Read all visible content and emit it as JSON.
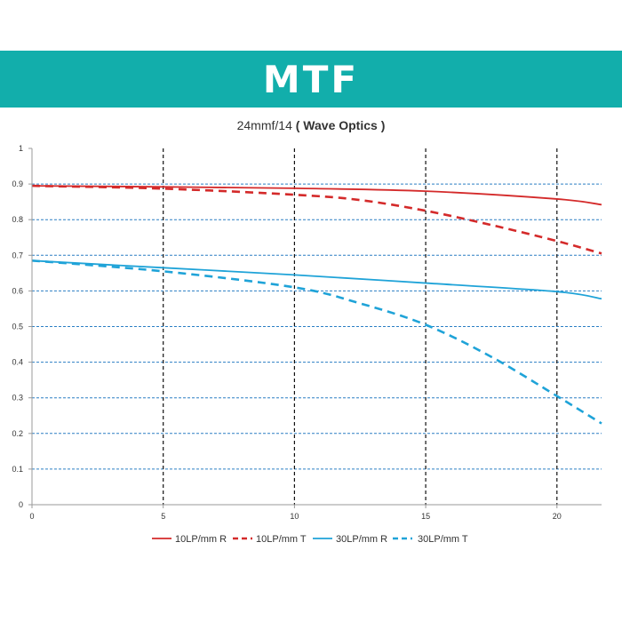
{
  "banner": {
    "title": "MTF"
  },
  "chart_data": {
    "type": "line",
    "title_prefix": "24mmf/14",
    "title_suffix": "( Wave Optics )",
    "xlabel": "",
    "ylabel": "",
    "xlim": [
      0,
      21.7
    ],
    "ylim": [
      0,
      1
    ],
    "xticks": [
      0,
      5,
      10,
      15,
      20
    ],
    "yticks": [
      0,
      0.1,
      0.2,
      0.3,
      0.4,
      0.5,
      0.6,
      0.7,
      0.8,
      0.9,
      1
    ],
    "ytick_labels": [
      "0",
      "0.1",
      "0.2",
      "0.3",
      "0.4",
      "0.5",
      "0.6",
      "0.7",
      "0.8",
      "0.9",
      "1"
    ],
    "grid": "vertical black dashed, horizontal blue dashed",
    "legend_position": "bottom",
    "series": [
      {
        "name": "10LP/mm R",
        "color": "#d42a2a",
        "dash": "solid",
        "x": [
          0,
          5,
          10,
          15,
          20,
          21.7
        ],
        "y": [
          0.895,
          0.892,
          0.888,
          0.88,
          0.858,
          0.842
        ]
      },
      {
        "name": "10LP/mm T",
        "color": "#d42a2a",
        "dash": "dashed",
        "x": [
          0,
          5,
          10,
          12.5,
          15,
          17.5,
          20,
          21.7
        ],
        "y": [
          0.895,
          0.887,
          0.87,
          0.855,
          0.825,
          0.785,
          0.74,
          0.705
        ]
      },
      {
        "name": "30LP/mm R",
        "color": "#1fa3d8",
        "dash": "solid",
        "x": [
          0,
          5,
          10,
          15,
          20,
          21.7
        ],
        "y": [
          0.685,
          0.665,
          0.645,
          0.622,
          0.598,
          0.578
        ]
      },
      {
        "name": "30LP/mm T",
        "color": "#1fa3d8",
        "dash": "dashed",
        "x": [
          0,
          5,
          10,
          12.5,
          15,
          17.5,
          20,
          21.7
        ],
        "y": [
          0.685,
          0.655,
          0.61,
          0.565,
          0.505,
          0.415,
          0.305,
          0.228
        ]
      }
    ]
  }
}
